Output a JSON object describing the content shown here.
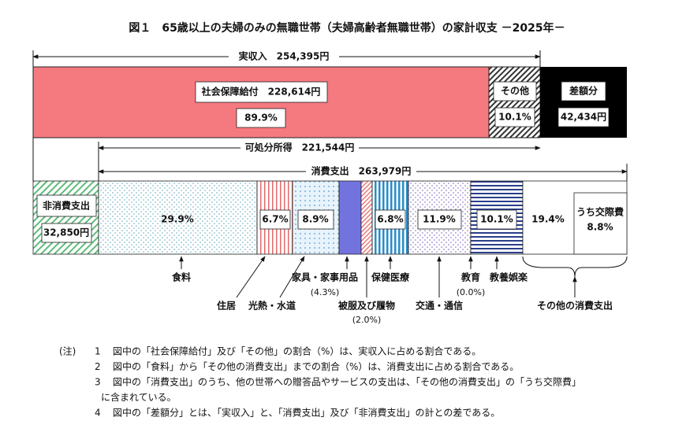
{
  "title": "図１　65歳以上の夫婦のみの無職世帯（夫婦高齢者無職世帯）の家計収支 －2025年－",
  "spans": {
    "income": "実収入　254,395円",
    "disposable": "可処分所得　221,544円",
    "consumption": "消費支出　263,979円"
  },
  "income_bar": {
    "social_security": {
      "label": "社会保障給付　228,614円",
      "share": "89.9%"
    },
    "other": {
      "label": "その他",
      "share": "10.1%"
    },
    "difference": {
      "label": "差額分",
      "amount": "42,434円"
    }
  },
  "spending_bar": {
    "non_consumption": {
      "label": "非消費支出",
      "amount": "32,850円"
    },
    "items": [
      {
        "label": "食料",
        "share": "29.9%"
      },
      {
        "label": "住居",
        "share": "6.7%"
      },
      {
        "label": "光熱・水道",
        "share": "8.9%"
      },
      {
        "label": "家具・家事用品",
        "share": "(4.3%)"
      },
      {
        "label": "被服及び履物",
        "share": "(2.0%)"
      },
      {
        "label": "保健医療",
        "share": "6.8%"
      },
      {
        "label": "交通・通信",
        "share": "11.9%"
      },
      {
        "label": "教育",
        "share": "(0.0%)"
      },
      {
        "label": "教養娯楽",
        "share": "10.1%"
      },
      {
        "label": "その他の消費支出",
        "share": "19.4%"
      }
    ],
    "social_expense": {
      "label": "うち交際費",
      "share": "8.8%"
    }
  },
  "notes": {
    "heading": "(注)",
    "items": [
      {
        "number": "1",
        "lines": [
          "図中の「社会保障給付」及び「その他」の割合（%）は、実収入に占める割合である。"
        ]
      },
      {
        "number": "2",
        "lines": [
          "図中の「食料」から「その他の消費支出」までの割合（%）は、消費支出に占める割合である。"
        ]
      },
      {
        "number": "3",
        "lines": [
          "図中の「消費支出」のうち、他の世帯への贈答品やサービスの支出は、「その他の消費支出」の「うち交際費」",
          "に含まれている。"
        ]
      },
      {
        "number": "4",
        "lines": [
          "図中の「差額分」とは、「実収入」と、「消費支出」及び「非消費支出」の計との差である。"
        ]
      }
    ]
  }
}
